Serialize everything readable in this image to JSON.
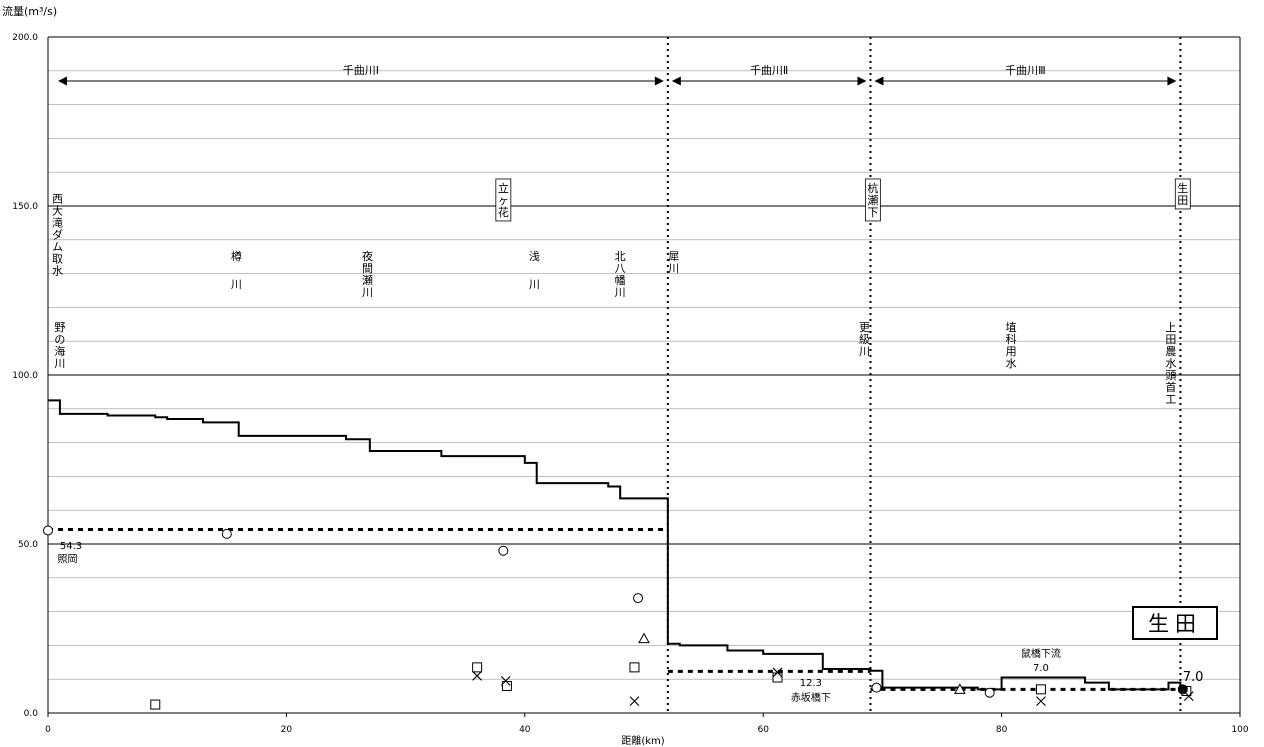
{
  "chart_data": {
    "type": "line",
    "ylabel": "流量(m³/s)",
    "xlabel": "距離(km)",
    "xlim": [
      0,
      100
    ],
    "ylim": [
      0,
      200
    ],
    "x_ticks": [
      "0",
      "20",
      "40",
      "60",
      "80",
      "100"
    ],
    "y_ticks": [
      "0.0",
      "50.0",
      "100.0",
      "150.0",
      "200.0"
    ],
    "grid": "horizontal",
    "sections": [
      {
        "label": "千曲川Ⅰ",
        "from": 0.5,
        "to": 52
      },
      {
        "label": "千曲川Ⅱ",
        "from": 52,
        "to": 69
      },
      {
        "label": "千曲川Ⅲ",
        "from": 69,
        "to": 95
      }
    ],
    "section_dividers": [
      52,
      69,
      95
    ],
    "boxed_labels": [
      {
        "text": "立ヶ花",
        "x": 38.2
      },
      {
        "text": "杭瀬下",
        "x": 69.2
      },
      {
        "text": "生田",
        "x": 95.2
      }
    ],
    "tributary_labels": [
      {
        "text": "西大滝ダム取水",
        "x": 0.8,
        "y": 154
      },
      {
        "text": "野の海川",
        "x": 1.0,
        "y": 116
      },
      {
        "text": "樽川",
        "x": 15.8,
        "y": 137
      },
      {
        "text": "夜間瀬川",
        "x": 26.8,
        "y": 137
      },
      {
        "text": "浅川",
        "x": 40.8,
        "y": 137
      },
      {
        "text": "北八幡川",
        "x": 48.0,
        "y": 137
      },
      {
        "text": "犀川",
        "x": 52.5,
        "y": 137
      },
      {
        "text": "更級川",
        "x": 68.5,
        "y": 116
      },
      {
        "text": "埴科用水",
        "x": 80.8,
        "y": 116
      },
      {
        "text": "上田農水頭首工",
        "x": 94.2,
        "y": 116
      }
    ],
    "series": [
      {
        "name": "流況",
        "style": "step",
        "x": [
          0,
          1,
          5,
          9,
          10,
          13,
          16,
          25,
          27,
          33,
          40,
          41,
          47,
          48,
          52,
          53,
          57,
          60,
          65,
          69,
          70,
          78,
          80,
          87,
          89,
          94,
          95
        ],
        "y": [
          92.5,
          88.5,
          88,
          87.5,
          87,
          86,
          82,
          81,
          77.5,
          76,
          74,
          68,
          67,
          63.5,
          20.5,
          20,
          18.5,
          17.5,
          13,
          12.5,
          7.5,
          7,
          10.5,
          9,
          7,
          9,
          7
        ]
      },
      {
        "name": "基準流量",
        "style": "dashed",
        "segments": [
          {
            "x": [
              0,
              52
            ],
            "y": [
              54.3,
              54.3
            ]
          },
          {
            "x": [
              52,
              69
            ],
            "y": [
              12.3,
              12.3
            ]
          },
          {
            "x": [
              69,
              95
            ],
            "y": [
              7.0,
              7.0
            ]
          }
        ]
      }
    ],
    "markers": [
      {
        "shape": "circle",
        "x": 0,
        "y": 54
      },
      {
        "shape": "circle",
        "x": 15,
        "y": 53
      },
      {
        "shape": "circle",
        "x": 38.2,
        "y": 48
      },
      {
        "shape": "circle",
        "x": 49.5,
        "y": 34
      },
      {
        "shape": "circle",
        "x": 69.5,
        "y": 7.5
      },
      {
        "shape": "circle",
        "x": 79,
        "y": 6
      },
      {
        "shape": "square",
        "x": 9,
        "y": 2.5
      },
      {
        "shape": "square",
        "x": 36,
        "y": 13.5
      },
      {
        "shape": "square",
        "x": 38.5,
        "y": 8
      },
      {
        "shape": "square",
        "x": 49.2,
        "y": 13.5
      },
      {
        "shape": "square",
        "x": 61.2,
        "y": 10.5
      },
      {
        "shape": "square",
        "x": 83.3,
        "y": 7
      },
      {
        "shape": "square",
        "x": 95.5,
        "y": 6.5
      },
      {
        "shape": "cross",
        "x": 36,
        "y": 11
      },
      {
        "shape": "cross",
        "x": 38.4,
        "y": 9.5
      },
      {
        "shape": "cross",
        "x": 49.2,
        "y": 3.5
      },
      {
        "shape": "cross",
        "x": 61.2,
        "y": 12
      },
      {
        "shape": "cross",
        "x": 83.3,
        "y": 3.5
      },
      {
        "shape": "cross",
        "x": 95.7,
        "y": 5
      },
      {
        "shape": "triangle",
        "x": 50,
        "y": 22
      },
      {
        "shape": "triangle",
        "x": 76.5,
        "y": 7
      },
      {
        "shape": "filled-circle",
        "x": 95.2,
        "y": 7
      }
    ],
    "annotations": [
      {
        "text": "54.3",
        "x": 1.0,
        "y": 48.5,
        "anchor": "start"
      },
      {
        "text": "照岡",
        "x": 0.8,
        "y": 44.5,
        "anchor": "start"
      },
      {
        "text": "12.3",
        "x": 64.0,
        "y": 8,
        "anchor": "middle"
      },
      {
        "text": "赤坂橋下",
        "x": 64.0,
        "y": 3.5,
        "anchor": "middle"
      },
      {
        "text": "鼠橋下流",
        "x": 83.3,
        "y": 16.5,
        "anchor": "middle"
      },
      {
        "text": "7.0",
        "x": 83.3,
        "y": 12.5,
        "anchor": "middle"
      },
      {
        "text": "7.0",
        "x": 95.2,
        "y": 9.5,
        "anchor": "start"
      }
    ],
    "station_box": "生田"
  }
}
